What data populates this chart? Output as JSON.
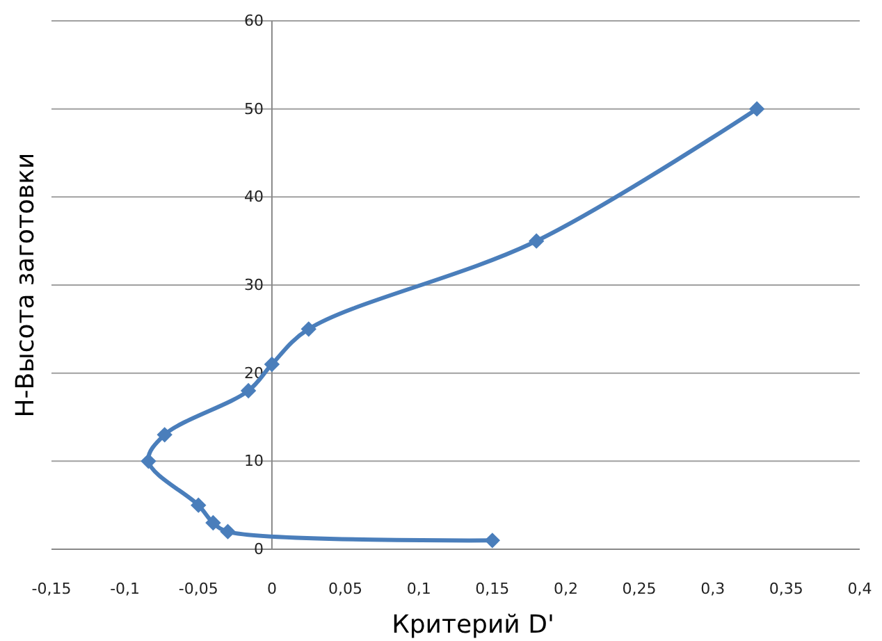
{
  "chart_data": {
    "type": "line",
    "xlabel": "Критерий D'",
    "ylabel": "H-Высота заготовки",
    "x": [
      0.15,
      -0.03,
      -0.04,
      -0.05,
      -0.084,
      -0.073,
      -0.016,
      0,
      0.025,
      0.18,
      0.33
    ],
    "series": [
      {
        "color": "#4a7ebb",
        "values": [
          1,
          2,
          3,
          5,
          10,
          13,
          18,
          21,
          25,
          35,
          50
        ]
      }
    ],
    "xlim": [
      -0.15,
      0.4
    ],
    "xticks": [
      {
        "value": -0.15,
        "label": "-0,15"
      },
      {
        "value": -0.1,
        "label": "-0,1"
      },
      {
        "value": -0.05,
        "label": "-0,05"
      },
      0,
      {
        "value": 0.05,
        "label": "0,05"
      },
      {
        "value": 0.1,
        "label": "0,1"
      },
      {
        "value": 0.15,
        "label": "0,15"
      },
      {
        "value": 0.2,
        "label": "0,2"
      },
      {
        "value": 0.25,
        "label": "0,25"
      },
      {
        "value": 0.3,
        "label": "0,3"
      },
      {
        "value": 0.35,
        "label": "0,35"
      },
      {
        "value": 0.4,
        "label": "0,4"
      }
    ],
    "ylim": [
      0,
      60
    ],
    "yticks": [
      0,
      10,
      20,
      30,
      40,
      50,
      60
    ],
    "grid": "y",
    "marker": "diamond",
    "line_style": "solid"
  }
}
